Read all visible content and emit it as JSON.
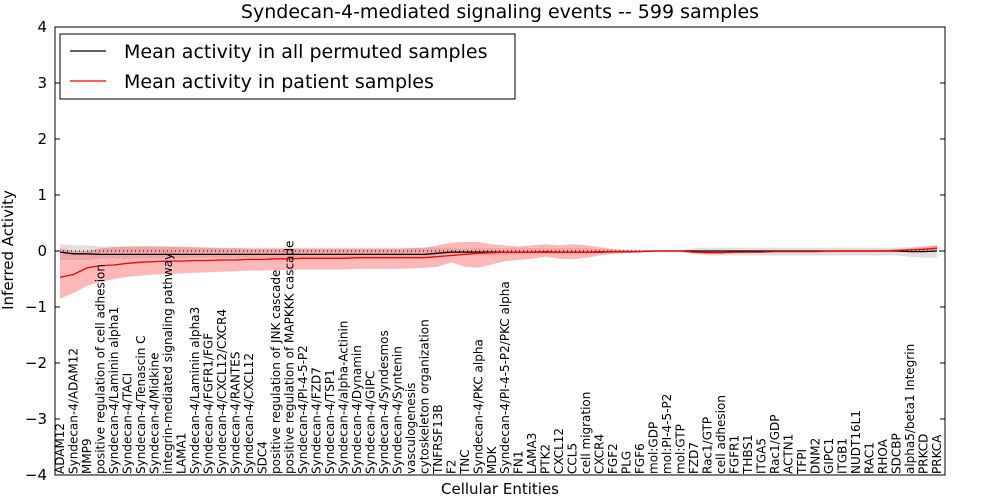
{
  "chart_data": {
    "type": "line",
    "title": "Syndecan-4-mediated signaling events -- 599 samples",
    "xlabel": "Cellular Entities",
    "ylabel": "Inferred Activity",
    "ylim": [
      -4,
      4
    ],
    "yticks": [
      -4,
      -3,
      -2,
      -1,
      0,
      1,
      2,
      3,
      4
    ],
    "legend_position": "top-left",
    "categories": [
      "ADAM12",
      "Syndecan-4/ADAM12",
      "MMP9",
      "positive regulation of cell adhesion",
      "Syndecan-4/Laminin alpha1",
      "Syndecan-4/TACI",
      "Syndecan-4/Tenascin C",
      "Syndecan-4/Midkine",
      "integrin-mediated signaling pathway",
      "LAMA1",
      "Syndecan-4/Laminin alpha3",
      "Syndecan-4/FGFR1/FGF",
      "Syndecan-4/CXCL12/CXCR4",
      "Syndecan-4/RANTES",
      "Syndecan-4/CXCL12",
      "SDC4",
      "positive regulation of JNK cascade",
      "positive regulation of MAPKKK cascade",
      "Syndecan-4/PI-4-5-P2",
      "Syndecan-4/FZD7",
      "Syndecan-4/TSP1",
      "Syndecan-4/alpha-Actinin",
      "Syndecan-4/Dynamin",
      "Syndecan-4/GIPC",
      "Syndecan-4/Syndesmos",
      "Syndecan-4/Syntenin",
      "vasculogenesis",
      "cytoskeleton organization",
      "TNFRSF13B",
      "F2",
      "TNC",
      "Syndecan-4/PKC alpha",
      "MDK",
      "Syndecan-4/PI-4-5-P2/PKC alpha",
      "FN1",
      "LAMA3",
      "PTK2",
      "CXCL12",
      "CCL5",
      "cell migration",
      "CXCR4",
      "FGF2",
      "PLG",
      "FGF6",
      "mol:GDP",
      "mol:PI-4-5-P2",
      "mol:GTP",
      "FZD7",
      "Rac1/GTP",
      "cell adhesion",
      "FGFR1",
      "THBS1",
      "ITGA5",
      "Rac1/GDP",
      "ACTN1",
      "TFPI",
      "DNM2",
      "GIPC1",
      "ITGB1",
      "NUDT16L1",
      "RAC1",
      "RHOA",
      "SDCBP",
      "alpha5/beta1 Integrin",
      "PRKCD",
      "PRKCA"
    ],
    "series": [
      {
        "name": "Mean activity in all permuted samples",
        "color": "#000000",
        "values": [
          -0.02,
          -0.05,
          -0.05,
          -0.06,
          -0.06,
          -0.06,
          -0.06,
          -0.06,
          -0.06,
          -0.06,
          -0.06,
          -0.06,
          -0.06,
          -0.06,
          -0.06,
          -0.06,
          -0.06,
          -0.06,
          -0.06,
          -0.06,
          -0.06,
          -0.06,
          -0.06,
          -0.06,
          -0.06,
          -0.06,
          -0.06,
          -0.06,
          -0.04,
          -0.02,
          -0.02,
          -0.02,
          -0.02,
          -0.02,
          -0.02,
          -0.02,
          -0.02,
          -0.02,
          -0.02,
          -0.02,
          -0.02,
          -0.01,
          -0.01,
          -0.01,
          0.0,
          0.0,
          0.0,
          0.0,
          0.0,
          0.0,
          0.0,
          0.0,
          0.0,
          0.0,
          0.0,
          0.0,
          0.0,
          0.0,
          0.0,
          0.0,
          0.0,
          0.0,
          0.0,
          -0.01,
          -0.01,
          0.0
        ],
        "band_lower": [
          -0.16,
          -0.16,
          -0.16,
          -0.14,
          -0.14,
          -0.14,
          -0.13,
          -0.13,
          -0.13,
          -0.13,
          -0.12,
          -0.12,
          -0.12,
          -0.12,
          -0.12,
          -0.12,
          -0.12,
          -0.12,
          -0.12,
          -0.12,
          -0.12,
          -0.12,
          -0.12,
          -0.12,
          -0.12,
          -0.12,
          -0.12,
          -0.12,
          -0.1,
          -0.08,
          -0.08,
          -0.08,
          -0.08,
          -0.08,
          -0.06,
          -0.06,
          -0.06,
          -0.06,
          -0.06,
          -0.06,
          -0.05,
          -0.04,
          -0.03,
          -0.02,
          -0.01,
          -0.01,
          -0.01,
          -0.06,
          -0.08,
          -0.08,
          -0.08,
          -0.08,
          -0.08,
          -0.08,
          -0.08,
          -0.08,
          -0.08,
          -0.08,
          -0.08,
          -0.08,
          -0.08,
          -0.08,
          -0.08,
          -0.1,
          -0.12,
          -0.12
        ],
        "band_upper": [
          0.12,
          0.1,
          0.1,
          0.08,
          0.08,
          0.08,
          0.07,
          0.07,
          0.07,
          0.07,
          0.06,
          0.06,
          0.06,
          0.06,
          0.06,
          0.06,
          0.06,
          0.06,
          0.06,
          0.06,
          0.06,
          0.06,
          0.06,
          0.06,
          0.06,
          0.06,
          0.06,
          0.06,
          0.06,
          0.05,
          0.05,
          0.05,
          0.05,
          0.05,
          0.05,
          0.05,
          0.05,
          0.05,
          0.05,
          0.05,
          0.04,
          0.03,
          0.02,
          0.02,
          0.01,
          0.01,
          0.01,
          0.05,
          0.06,
          0.06,
          0.06,
          0.06,
          0.06,
          0.06,
          0.06,
          0.06,
          0.06,
          0.06,
          0.06,
          0.06,
          0.06,
          0.06,
          0.06,
          0.07,
          0.08,
          0.1
        ]
      },
      {
        "name": "Mean activity in patient samples",
        "color": "#ff0000",
        "values": [
          -0.47,
          -0.42,
          -0.3,
          -0.26,
          -0.25,
          -0.22,
          -0.2,
          -0.19,
          -0.18,
          -0.18,
          -0.17,
          -0.17,
          -0.16,
          -0.16,
          -0.15,
          -0.15,
          -0.14,
          -0.14,
          -0.13,
          -0.13,
          -0.13,
          -0.13,
          -0.12,
          -0.12,
          -0.12,
          -0.12,
          -0.12,
          -0.12,
          -0.1,
          -0.08,
          -0.06,
          -0.04,
          -0.03,
          -0.02,
          -0.02,
          -0.02,
          -0.01,
          -0.02,
          -0.02,
          -0.02,
          -0.01,
          -0.01,
          -0.01,
          -0.01,
          0.0,
          0.0,
          0.0,
          -0.02,
          -0.03,
          -0.03,
          -0.02,
          -0.02,
          -0.02,
          -0.01,
          -0.01,
          -0.01,
          -0.01,
          0.0,
          0.0,
          0.0,
          0.0,
          0.0,
          0.01,
          0.02,
          0.03,
          0.05
        ],
        "band_lower": [
          -0.85,
          -0.75,
          -0.62,
          -0.55,
          -0.5,
          -0.46,
          -0.44,
          -0.42,
          -0.41,
          -0.4,
          -0.39,
          -0.38,
          -0.37,
          -0.36,
          -0.35,
          -0.35,
          -0.34,
          -0.34,
          -0.33,
          -0.33,
          -0.33,
          -0.33,
          -0.32,
          -0.32,
          -0.32,
          -0.32,
          -0.31,
          -0.3,
          -0.28,
          -0.2,
          -0.28,
          -0.3,
          -0.24,
          -0.18,
          -0.16,
          -0.14,
          -0.1,
          -0.14,
          -0.15,
          -0.12,
          -0.08,
          -0.05,
          -0.04,
          -0.02,
          -0.01,
          -0.01,
          -0.01,
          -0.04,
          -0.05,
          -0.05,
          -0.04,
          -0.03,
          -0.03,
          -0.02,
          -0.02,
          -0.02,
          -0.02,
          -0.02,
          -0.02,
          -0.02,
          -0.02,
          -0.01,
          -0.01,
          0.0,
          0.0,
          0.01
        ],
        "band_upper": [
          0.05,
          0.0,
          0.0,
          0.05,
          0.07,
          0.08,
          0.09,
          0.09,
          0.08,
          0.08,
          0.07,
          0.06,
          0.05,
          0.05,
          0.04,
          0.04,
          0.04,
          0.04,
          0.04,
          0.04,
          0.04,
          0.04,
          0.04,
          0.04,
          0.04,
          0.04,
          0.05,
          0.06,
          0.1,
          0.15,
          0.16,
          0.16,
          0.12,
          0.1,
          0.08,
          0.1,
          0.12,
          0.1,
          0.12,
          0.1,
          0.07,
          0.03,
          0.02,
          0.01,
          0.01,
          0.01,
          0.01,
          0.0,
          0.0,
          -0.01,
          0.0,
          0.0,
          0.0,
          0.0,
          0.0,
          0.0,
          0.0,
          0.01,
          0.02,
          0.02,
          0.02,
          0.02,
          0.03,
          0.05,
          0.07,
          0.1
        ]
      }
    ]
  }
}
